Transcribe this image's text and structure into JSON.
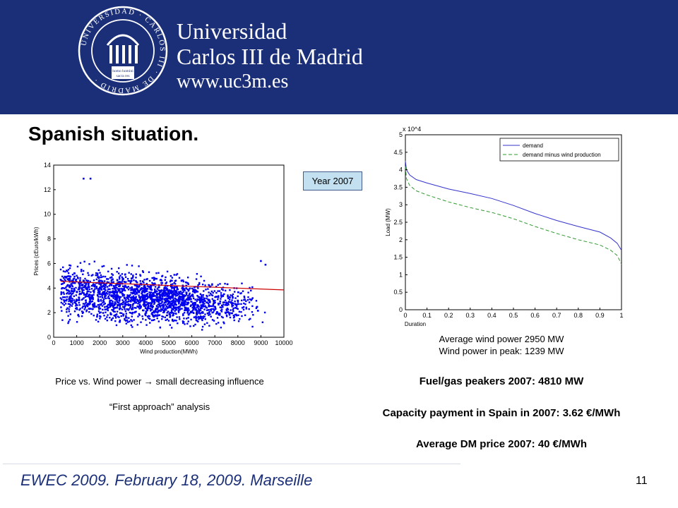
{
  "header": {
    "university_line1": "Universidad",
    "university_line2": "Carlos III de Madrid",
    "university_url": "www.uc3m.es",
    "seal_text": "UNIVERSIDAD CARLOS III DE MADRID",
    "seal_motto": "homo homini sacra res",
    "background_color": "#1b2f78"
  },
  "slide": {
    "title": "Spanish situation.",
    "year_badge": "Year 2007",
    "caption_scatter_1": "Price vs. Wind power → small decreasing influence",
    "caption_scatter_2": "“First approach” analysis",
    "caption_load_1": "Average wind power 2950 MW",
    "caption_load_2": "Wind power in peak: 1239 MW",
    "fact_1": "Fuel/gas peakers 2007: 4810 MW",
    "fact_2": "Capacity payment in Spain in 2007: 3.62 €/MWh",
    "fact_3": "Average DM price 2007: 40 €/MWh"
  },
  "footer": {
    "event": "EWEC 2009. February 18, 2009. Marseille",
    "page_number": "11"
  },
  "chart_data": [
    {
      "type": "scatter",
      "xlabel": "Wind production(MWh)",
      "ylabel": "Prices (cEuro/kWh)",
      "xlim": [
        0,
        10000
      ],
      "ylim": [
        0,
        14
      ],
      "xticks": [
        "0",
        "1000",
        "2000",
        "3000",
        "4000",
        "5000",
        "6000",
        "7000",
        "8000",
        "9000",
        "10000"
      ],
      "yticks": [
        "0",
        "2",
        "4",
        "6",
        "8",
        "10",
        "12",
        "14"
      ],
      "series": [
        {
          "marker_color": "#0000ee",
          "description_points": "dense cloud of hourly observations",
          "points": [
            [
              1300,
              12.9
            ],
            [
              1600,
              12.9
            ],
            [
              900,
              5.2
            ],
            [
              1500,
              4.1
            ],
            [
              2200,
              3.6
            ],
            [
              2900,
              4.4
            ],
            [
              3500,
              3.2
            ],
            [
              4200,
              3.9
            ],
            [
              5000,
              3.4
            ],
            [
              5800,
              3.1
            ],
            [
              6500,
              2.8
            ],
            [
              7400,
              3.5
            ],
            [
              8200,
              2.4
            ],
            [
              9000,
              6.2
            ],
            [
              9200,
              5.9
            ]
          ],
          "cloud": {
            "x_range": [
              300,
              9200
            ],
            "y_center": 3.8,
            "y_spread": 3.2,
            "count": 2200,
            "outlier_x_max": 9200
          }
        },
        {
          "type": "line",
          "color": "#cc0000",
          "x": [
            300,
            10000
          ],
          "y": [
            4.55,
            3.85
          ]
        }
      ]
    },
    {
      "type": "line",
      "xlabel": "Duration",
      "ylabel": "Load (MW)",
      "y_multiplier": "x 10^4",
      "xlim": [
        0,
        1
      ],
      "ylim": [
        0,
        5
      ],
      "xticks": [
        "0",
        "0.1",
        "0.2",
        "0.3",
        "0.4",
        "0.5",
        "0.6",
        "0.7",
        "0.8",
        "0.9",
        "1"
      ],
      "yticks": [
        "0",
        "0.5",
        "1",
        "1.5",
        "2",
        "2.5",
        "3",
        "3.5",
        "4",
        "4.5",
        "5"
      ],
      "legend_position": "top-right",
      "series": [
        {
          "name": "demand",
          "color": "#3333cc",
          "dash": "solid",
          "x": [
            0,
            0.005,
            0.02,
            0.05,
            0.1,
            0.2,
            0.3,
            0.4,
            0.5,
            0.6,
            0.7,
            0.8,
            0.9,
            0.95,
            0.98,
            1.0
          ],
          "y": [
            4.25,
            4.0,
            3.85,
            3.72,
            3.62,
            3.45,
            3.32,
            3.18,
            2.98,
            2.75,
            2.55,
            2.38,
            2.22,
            2.05,
            1.9,
            1.7
          ]
        },
        {
          "name": "demand minus wind production",
          "color": "#339933",
          "dash": "dashed",
          "x": [
            0,
            0.005,
            0.02,
            0.05,
            0.1,
            0.2,
            0.3,
            0.4,
            0.5,
            0.6,
            0.7,
            0.8,
            0.9,
            0.95,
            0.98,
            1.0
          ],
          "y": [
            4.1,
            3.75,
            3.55,
            3.4,
            3.28,
            3.08,
            2.92,
            2.78,
            2.6,
            2.38,
            2.18,
            2.0,
            1.85,
            1.7,
            1.55,
            1.3
          ]
        }
      ]
    }
  ]
}
